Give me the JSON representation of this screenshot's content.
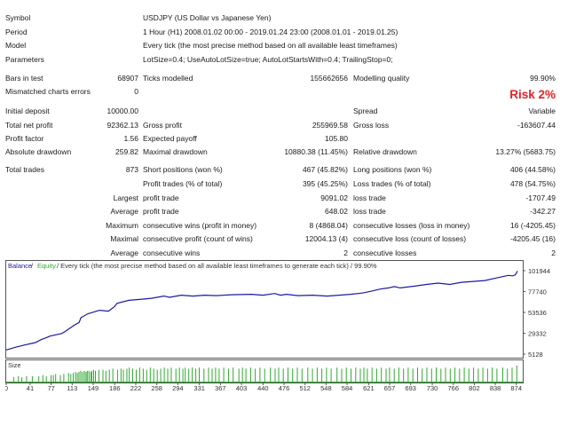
{
  "report": {
    "symbol_label": "Symbol",
    "symbol_value": "USDJPY (US Dollar vs Japanese Yen)",
    "period_label": "Period",
    "period_value": "1 Hour (H1) 2008.01.02 00:00 - 2019.01.24 23:00 (2008.01.01 - 2019.01.25)",
    "model_label": "Model",
    "model_value": "Every tick (the most precise method based on all available least timeframes)",
    "parameters_label": "Parameters",
    "parameters_value": "LotSize=0.4; UseAutoLotSize=true; AutoLotStartsWith=0.4; TrailingStop=0;",
    "bars_label": "Bars in test",
    "bars_value": "68907",
    "ticks_label": "Ticks modelled",
    "ticks_value": "155662656",
    "quality_label": "Modelling quality",
    "quality_value": "99.90%",
    "mismatched_label": "Mismatched charts errors",
    "mismatched_value": "0",
    "risk": "Risk 2%",
    "deposit_label": "Initial deposit",
    "deposit_value": "10000.00",
    "spread_label": "Spread",
    "spread_value": "Variable",
    "net_profit_label": "Total net profit",
    "net_profit_value": "92362.13",
    "gross_profit_label": "Gross profit",
    "gross_profit_value": "255969.58",
    "gross_loss_label": "Gross loss",
    "gross_loss_value": "-163607.44",
    "profit_factor_label": "Profit factor",
    "profit_factor_value": "1.56",
    "expected_payoff_label": "Expected payoff",
    "expected_payoff_value": "105.80",
    "abs_dd_label": "Absolute drawdown",
    "abs_dd_value": "259.82",
    "max_dd_label": "Maximal drawdown",
    "max_dd_value": "10880.38 (11.45%)",
    "rel_dd_label": "Relative drawdown",
    "rel_dd_value": "13.27% (5683.75)",
    "total_trades_label": "Total trades",
    "total_trades_value": "873",
    "short_label": "Short positions (won %)",
    "short_value": "467 (45.82%)",
    "long_label": "Long positions (won %)",
    "long_value": "406 (44.58%)",
    "profit_trades_label": "Profit trades (% of total)",
    "profit_trades_value": "395 (45.25%)",
    "loss_trades_label": "Loss trades (% of total)",
    "loss_trades_value": "478 (54.75%)",
    "largest_label": "Largest",
    "largest_profit_label": "profit trade",
    "largest_profit_value": "9091.02",
    "largest_loss_label": "loss trade",
    "largest_loss_value": "-1707.49",
    "average_label": "Average",
    "average_profit_label": "profit trade",
    "average_profit_value": "648.02",
    "average_loss_label": "loss trade",
    "average_loss_value": "-342.27",
    "maximum_label": "Maximum",
    "max_cons_wins_label": "consecutive wins (profit in money)",
    "max_cons_wins_value": "8 (4868.04)",
    "max_cons_losses_label": "consecutive losses (loss in money)",
    "max_cons_losses_value": "16 (-4205.45)",
    "maximal_label": "Maximal",
    "maximal_profit_label": "consecutive profit (count of wins)",
    "maximal_profit_value": "12004.13 (4)",
    "maximal_loss_label": "consecutive loss (count of losses)",
    "maximal_loss_value": "-4205.45 (16)",
    "avg2_label": "Average",
    "avg_cons_wins_label": "consecutive wins",
    "avg_cons_wins_value": "2",
    "avg_cons_losses_label": "consecutive losses",
    "avg_cons_losses_value": "2"
  },
  "chart_data": {
    "type": "line",
    "legend": {
      "balance": "Balance",
      "sep1": " / ",
      "equity": "Equity",
      "rest": " / Every tick (the most precise method based on all available least timeframes to generate each tick) / 99.90%"
    },
    "size_label": "Size",
    "colors": {
      "balance": "#1a1aa0",
      "equity": "#33aa33",
      "size": "#2faa2f",
      "axis": "#333333"
    },
    "ylim": [
      5128,
      101944
    ],
    "yticks": [
      "101944",
      "77740",
      "53536",
      "29332",
      "5128"
    ],
    "xlim": [
      0,
      885
    ],
    "xticks": [
      "0",
      "41",
      "77",
      "113",
      "149",
      "186",
      "222",
      "258",
      "294",
      "331",
      "367",
      "403",
      "440",
      "476",
      "512",
      "548",
      "584",
      "621",
      "657",
      "693",
      "730",
      "766",
      "802",
      "838",
      "874"
    ],
    "series": [
      {
        "x": [
          0,
          15,
          30,
          50,
          60,
          70,
          75,
          95,
          100,
          115,
          125,
          128,
          140,
          160,
          175,
          185,
          190,
          210,
          235,
          250,
          270,
          280,
          300,
          320,
          340,
          360,
          385,
          420,
          440,
          460,
          470,
          480,
          500,
          525,
          550,
          570,
          590,
          610,
          625,
          640,
          655,
          665,
          675,
          700,
          720,
          740,
          760,
          780,
          800,
          820,
          840,
          860,
          868,
          872,
          876
        ],
        "y": [
          10000,
          13000,
          15500,
          18500,
          22000,
          24500,
          26000,
          29000,
          31000,
          38000,
          42000,
          47500,
          52000,
          56000,
          55000,
          60000,
          64000,
          67500,
          69000,
          70000,
          72500,
          71000,
          73500,
          72500,
          73500,
          73000,
          74000,
          74500,
          73500,
          75500,
          73500,
          74500,
          73000,
          73500,
          72500,
          73500,
          74500,
          76000,
          78000,
          80500,
          82000,
          83500,
          82000,
          84000,
          86000,
          87500,
          86000,
          88500,
          89500,
          90500,
          93500,
          96500,
          96000,
          97000,
          101500
        ]
      }
    ],
    "size_bars": {
      "x": [
        12,
        20,
        26,
        34,
        44,
        55,
        62,
        68,
        76,
        80,
        84,
        92,
        98,
        106,
        110,
        114,
        118,
        121,
        124,
        127,
        130,
        133,
        136,
        138,
        141,
        144,
        146,
        149,
        152,
        158,
        165,
        170,
        176,
        182,
        190,
        196,
        200,
        206,
        210,
        216,
        222,
        228,
        234,
        240,
        246,
        252,
        258,
        264,
        270,
        276,
        282,
        290,
        296,
        302,
        306,
        312,
        318,
        324,
        330,
        338,
        346,
        352,
        358,
        364,
        372,
        380,
        388,
        398,
        404,
        410,
        418,
        426,
        434,
        442,
        452,
        460,
        466,
        474,
        482,
        490,
        498,
        506,
        516,
        524,
        532,
        540,
        548,
        556,
        566,
        574,
        582,
        590,
        598,
        606,
        612,
        618,
        626,
        634,
        642,
        650,
        656,
        664,
        672,
        680,
        688,
        696,
        704,
        712,
        720,
        728,
        736,
        744,
        752,
        760,
        768,
        776,
        784,
        792,
        800,
        808,
        816,
        824,
        832,
        840,
        850,
        858,
        866,
        874
      ],
      "h": [
        0.25,
        0.3,
        0.25,
        0.3,
        0.3,
        0.3,
        0.35,
        0.3,
        0.35,
        0.35,
        0.4,
        0.35,
        0.4,
        0.45,
        0.4,
        0.45,
        0.5,
        0.45,
        0.5,
        0.55,
        0.5,
        0.55,
        0.5,
        0.55,
        0.55,
        0.5,
        0.55,
        0.6,
        0.55,
        0.6,
        0.6,
        0.55,
        0.6,
        0.65,
        0.6,
        0.65,
        0.6,
        0.65,
        0.7,
        0.65,
        0.6,
        0.7,
        0.65,
        0.6,
        0.7,
        0.65,
        0.6,
        0.65,
        0.7,
        0.65,
        0.7,
        0.65,
        0.7,
        0.65,
        0.7,
        0.65,
        0.7,
        0.65,
        0.7,
        0.65,
        0.7,
        0.65,
        0.7,
        0.65,
        0.7,
        0.65,
        0.7,
        0.65,
        0.7,
        0.65,
        0.7,
        0.65,
        0.7,
        0.65,
        0.7,
        0.65,
        0.7,
        0.65,
        0.7,
        0.65,
        0.7,
        0.65,
        0.7,
        0.65,
        0.7,
        0.65,
        0.7,
        0.65,
        0.7,
        0.65,
        0.7,
        0.65,
        0.7,
        0.65,
        0.7,
        0.65,
        0.7,
        0.65,
        0.7,
        0.65,
        0.7,
        0.65,
        0.7,
        0.65,
        0.7,
        0.65,
        0.7,
        0.65,
        0.7,
        0.65,
        0.7,
        0.65,
        0.7,
        0.65,
        0.7,
        0.65,
        0.7,
        0.65,
        0.7,
        0.65,
        0.7,
        0.65,
        0.7,
        0.65,
        0.7,
        0.65,
        0.7,
        0.8
      ]
    }
  }
}
